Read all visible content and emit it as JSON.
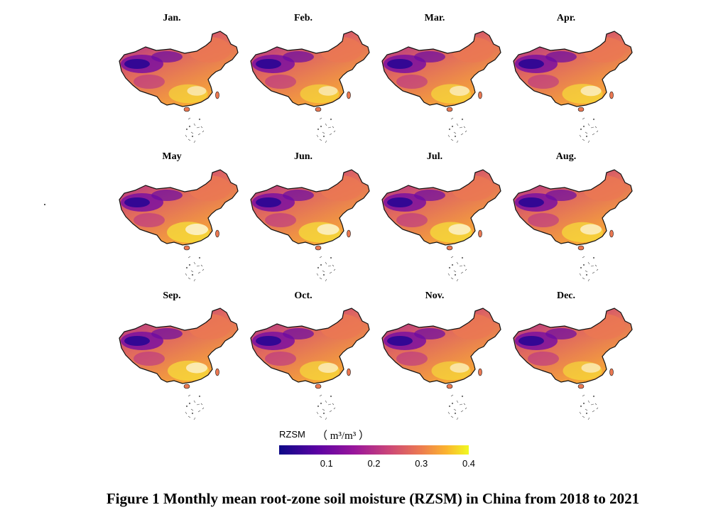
{
  "figure": {
    "caption": "Figure 1 Monthly mean root-zone soil moisture (RZSM) in China from 2018 to 2021",
    "panels": [
      {
        "label": "Jan.",
        "wet_level": 0.55
      },
      {
        "label": "Feb.",
        "wet_level": 0.55
      },
      {
        "label": "Mar.",
        "wet_level": 0.6
      },
      {
        "label": "Apr.",
        "wet_level": 0.65
      },
      {
        "label": "May",
        "wet_level": 0.8
      },
      {
        "label": "Jun.",
        "wet_level": 0.75
      },
      {
        "label": "Jul.",
        "wet_level": 0.75
      },
      {
        "label": "Aug.",
        "wet_level": 0.7
      },
      {
        "label": "Sep.",
        "wet_level": 0.7
      },
      {
        "label": "Oct.",
        "wet_level": 0.6
      },
      {
        "label": "Nov.",
        "wet_level": 0.55
      },
      {
        "label": "Dec.",
        "wet_level": 0.55
      }
    ]
  },
  "colorbar": {
    "title": "RZSM",
    "unit": "（ m³/m³ ）",
    "ticks": [
      "0.1",
      "0.2",
      "0.3",
      "0.4"
    ],
    "tick_values": [
      0.1,
      0.2,
      0.3,
      0.4
    ],
    "range": [
      0.0,
      0.4
    ],
    "colormap": "plasma",
    "colors": [
      "#0d0887",
      "#5b02a3",
      "#9a179b",
      "#cb4678",
      "#eb7852",
      "#fbb32f",
      "#f0f921"
    ]
  }
}
